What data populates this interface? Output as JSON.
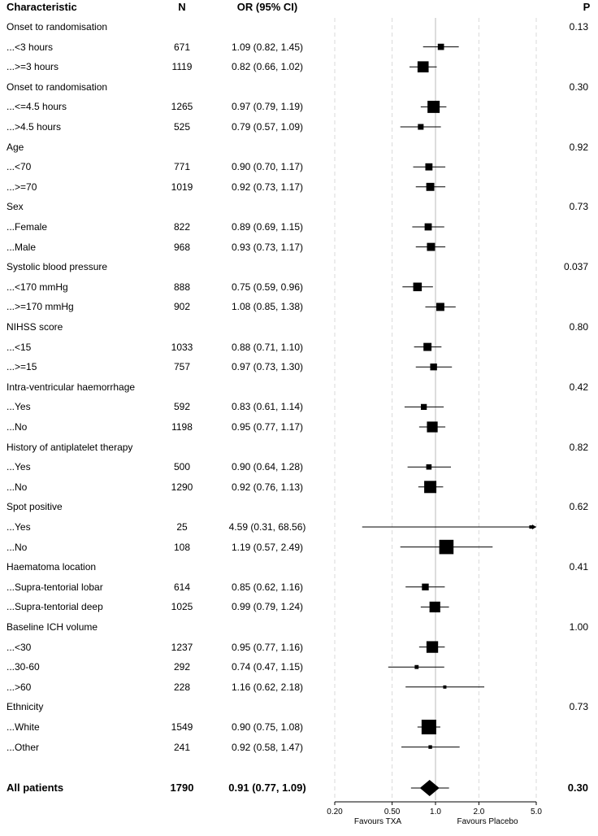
{
  "chart_data": {
    "type": "forest",
    "headers": {
      "characteristic": "Characteristic",
      "n": "N",
      "or": "OR (95% CI)",
      "p": "P"
    },
    "groups": [
      {
        "label": "Onset to randomisation",
        "p": "0.13",
        "rows": [
          {
            "label": "...<3 hours",
            "n": "671",
            "or_text": "1.09 (0.82, 1.45)",
            "or": 1.09,
            "lo": 0.82,
            "hi": 1.45,
            "box": 0.35
          },
          {
            "label": "...>=3 hours",
            "n": "1119",
            "or_text": "0.82 (0.66, 1.02)",
            "or": 0.82,
            "lo": 0.66,
            "hi": 1.02,
            "box": 0.62
          }
        ]
      },
      {
        "label": "Onset to randomisation",
        "p": "0.30",
        "rows": [
          {
            "label": "...<=4.5 hours",
            "n": "1265",
            "or_text": "0.97 (0.79, 1.19)",
            "or": 0.97,
            "lo": 0.79,
            "hi": 1.19,
            "box": 0.68
          },
          {
            "label": "...>4.5 hours",
            "n": "525",
            "or_text": "0.79 (0.57, 1.09)",
            "or": 0.79,
            "lo": 0.57,
            "hi": 1.09,
            "box": 0.32
          }
        ]
      },
      {
        "label": "Age",
        "p": "0.92",
        "rows": [
          {
            "label": "...<70",
            "n": "771",
            "or_text": "0.90 (0.70, 1.17)",
            "or": 0.9,
            "lo": 0.7,
            "hi": 1.17,
            "box": 0.4
          },
          {
            "label": "...>=70",
            "n": "1019",
            "or_text": "0.92 (0.73, 1.17)",
            "or": 0.92,
            "lo": 0.73,
            "hi": 1.17,
            "box": 0.45
          }
        ]
      },
      {
        "label": "Sex",
        "p": "0.73",
        "rows": [
          {
            "label": "...Female",
            "n": "822",
            "or_text": "0.89 (0.69, 1.15)",
            "or": 0.89,
            "lo": 0.69,
            "hi": 1.15,
            "box": 0.4
          },
          {
            "label": "...Male",
            "n": "968",
            "or_text": "0.93 (0.73, 1.17)",
            "or": 0.93,
            "lo": 0.73,
            "hi": 1.17,
            "box": 0.45
          }
        ]
      },
      {
        "label": "Systolic blood pressure",
        "p": "0.037",
        "rows": [
          {
            "label": "...<170 mmHg",
            "n": "888",
            "or_text": "0.75 (0.59, 0.96)",
            "or": 0.75,
            "lo": 0.59,
            "hi": 0.96,
            "box": 0.48
          },
          {
            "label": "...>=170 mmHg",
            "n": "902",
            "or_text": "1.08 (0.85, 1.38)",
            "or": 1.08,
            "lo": 0.85,
            "hi": 1.38,
            "box": 0.45
          }
        ]
      },
      {
        "label": "NIHSS score",
        "p": "0.80",
        "rows": [
          {
            "label": "...<15",
            "n": "1033",
            "or_text": "0.88 (0.71, 1.10)",
            "or": 0.88,
            "lo": 0.71,
            "hi": 1.1,
            "box": 0.45
          },
          {
            "label": "...>=15",
            "n": "757",
            "or_text": "0.97 (0.73, 1.30)",
            "or": 0.97,
            "lo": 0.73,
            "hi": 1.3,
            "box": 0.38
          }
        ]
      },
      {
        "label": "Intra-ventricular haemorrhage",
        "p": "0.42",
        "rows": [
          {
            "label": "...Yes",
            "n": "592",
            "or_text": "0.83 (0.61, 1.14)",
            "or": 0.83,
            "lo": 0.61,
            "hi": 1.14,
            "box": 0.33
          },
          {
            "label": "...No",
            "n": "1198",
            "or_text": "0.95 (0.77, 1.17)",
            "or": 0.95,
            "lo": 0.77,
            "hi": 1.17,
            "box": 0.6
          }
        ]
      },
      {
        "label": "History of antiplatelet therapy",
        "p": "0.82",
        "rows": [
          {
            "label": "...Yes",
            "n": "500",
            "or_text": "0.90 (0.64, 1.28)",
            "or": 0.9,
            "lo": 0.64,
            "hi": 1.28,
            "box": 0.3
          },
          {
            "label": "...No",
            "n": "1290",
            "or_text": "0.92 (0.76, 1.13)",
            "or": 0.92,
            "lo": 0.76,
            "hi": 1.13,
            "box": 0.68
          }
        ]
      },
      {
        "label": "Spot positive",
        "p": "0.62",
        "rows": [
          {
            "label": "...Yes",
            "n": "25",
            "or_text": "4.59 (0.31, 68.56)",
            "or": 4.59,
            "lo": 0.31,
            "hi": 68.56,
            "box": 0.14
          },
          {
            "label": "...No",
            "n": "108",
            "or_text": "1.19 (0.57, 2.49)",
            "or": 1.19,
            "lo": 0.57,
            "hi": 2.49,
            "box": 0.8
          }
        ]
      },
      {
        "label": "Haematoma location",
        "p": "0.41",
        "rows": [
          {
            "label": "...Supra-tentorial lobar",
            "n": "614",
            "or_text": "0.85 (0.62, 1.16)",
            "or": 0.85,
            "lo": 0.62,
            "hi": 1.16,
            "box": 0.38
          },
          {
            "label": "...Supra-tentorial deep",
            "n": "1025",
            "or_text": "0.99 (0.79, 1.24)",
            "or": 0.99,
            "lo": 0.79,
            "hi": 1.24,
            "box": 0.6
          }
        ]
      },
      {
        "label": "Baseline ICH volume",
        "p": "1.00",
        "rows": [
          {
            "label": "...<30",
            "n": "1237",
            "or_text": "0.95 (0.77, 1.16)",
            "or": 0.95,
            "lo": 0.77,
            "hi": 1.16,
            "box": 0.65
          },
          {
            "label": "...30-60",
            "n": "292",
            "or_text": "0.74 (0.47, 1.15)",
            "or": 0.74,
            "lo": 0.47,
            "hi": 1.15,
            "box": 0.22
          },
          {
            "label": "...>60",
            "n": "228",
            "or_text": "1.16 (0.62, 2.18)",
            "or": 1.16,
            "lo": 0.62,
            "hi": 2.18,
            "box": 0.18
          }
        ]
      },
      {
        "label": "Ethnicity",
        "p": "0.73",
        "rows": [
          {
            "label": "...White",
            "n": "1549",
            "or_text": "0.90 (0.75, 1.08)",
            "or": 0.9,
            "lo": 0.75,
            "hi": 1.08,
            "box": 0.82
          },
          {
            "label": "...Other",
            "n": "241",
            "or_text": "0.92 (0.58, 1.47)",
            "or": 0.92,
            "lo": 0.58,
            "hi": 1.47,
            "box": 0.2
          }
        ]
      }
    ],
    "overall": {
      "label": "All patients",
      "n": "1790",
      "or_text": "0.91 (0.77, 1.09)",
      "or": 0.91,
      "lo": 0.77,
      "hi": 1.09,
      "p": "0.30"
    },
    "x_axis": {
      "scale": "log",
      "range": [
        0.2,
        5.0
      ],
      "ticks": [
        0.2,
        0.5,
        1.0,
        2.0,
        5.0
      ],
      "tick_labels": [
        "0.20",
        "0.50",
        "1.0",
        "2.0",
        "5.0"
      ],
      "reference": 1.0
    },
    "favours_left": "Favours TXA",
    "favours_right": "Favours Placebo"
  }
}
